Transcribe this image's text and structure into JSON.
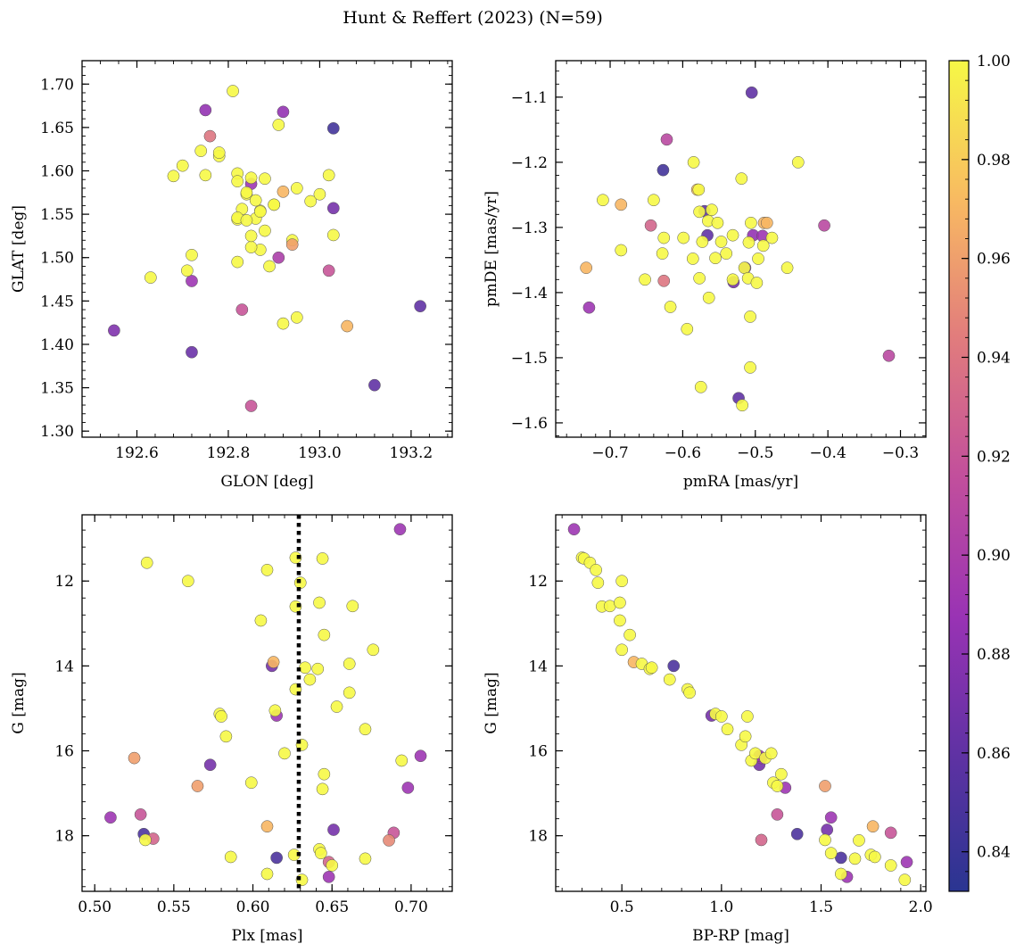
{
  "title": "Hunt & Reffert (2023) (N=59)",
  "colors": {
    "axis": "#000000",
    "marker_edge": "#555555",
    "vline": "#000000"
  },
  "colorbar": {
    "colormap": "plasma",
    "range": [
      0.832,
      1.0
    ],
    "ticks": [
      0.84,
      0.86,
      0.88,
      0.9,
      0.92,
      0.94,
      0.96,
      0.98,
      1.0
    ],
    "tick_labels": [
      "0.84",
      "0.86",
      "0.88",
      "0.90",
      "0.92",
      "0.94",
      "0.96",
      "0.98",
      "1.00"
    ]
  },
  "chart_data": [
    {
      "type": "scatter",
      "xlabel": "GLON [deg]",
      "ylabel": "GLAT [deg]",
      "xlim": [
        192.48,
        193.29
      ],
      "ylim": [
        1.293,
        1.727
      ],
      "xticks": [
        192.6,
        192.8,
        193.0,
        193.2
      ],
      "xtick_labels": [
        "192.6",
        "192.8",
        "193.0",
        "193.2"
      ],
      "yticks": [
        1.3,
        1.35,
        1.4,
        1.45,
        1.5,
        1.55,
        1.6,
        1.65,
        1.7
      ],
      "ytick_labels": [
        "1.30",
        "1.35",
        "1.40",
        "1.45",
        "1.50",
        "1.55",
        "1.60",
        "1.65",
        "1.70"
      ],
      "x": [
        192.55,
        192.72,
        192.72,
        192.75,
        192.76,
        192.83,
        192.85,
        192.85,
        192.91,
        192.92,
        193.03,
        193.03,
        193.02,
        193.12,
        193.22,
        192.81,
        192.74,
        192.75,
        192.78,
        192.78,
        192.7,
        192.68,
        192.82,
        192.82,
        192.83,
        192.84,
        192.84,
        192.85,
        192.86,
        192.87,
        192.87,
        192.88,
        192.89,
        192.9,
        192.91,
        192.92,
        192.94,
        192.95,
        192.98,
        193.0,
        193.02,
        193.03,
        192.63,
        192.71,
        192.72,
        192.82,
        192.82,
        192.84,
        192.85,
        192.85,
        192.87,
        192.88,
        192.9,
        192.94,
        192.95,
        193.06,
        192.82,
        192.86,
        192.92
      ],
      "y": [
        1.416,
        1.391,
        1.473,
        1.67,
        1.64,
        1.44,
        1.329,
        1.585,
        1.5,
        1.668,
        1.649,
        1.557,
        1.485,
        1.353,
        1.444,
        1.692,
        1.623,
        1.595,
        1.617,
        1.621,
        1.606,
        1.594,
        1.597,
        1.588,
        1.556,
        1.573,
        1.575,
        1.592,
        1.545,
        1.554,
        1.509,
        1.591,
        1.49,
        1.561,
        1.653,
        1.576,
        1.52,
        1.58,
        1.565,
        1.573,
        1.595,
        1.526,
        1.477,
        1.485,
        1.503,
        1.544,
        1.546,
        1.543,
        1.512,
        1.525,
        1.553,
        1.531,
        1.561,
        1.515,
        1.431,
        1.421,
        1.495,
        1.566,
        1.424
      ],
      "c": [
        0.875,
        0.865,
        0.89,
        0.885,
        0.94,
        0.92,
        0.92,
        0.89,
        0.9,
        0.885,
        0.845,
        0.87,
        0.92,
        0.86,
        0.86,
        1,
        1,
        1,
        1,
        1,
        1,
        1,
        1,
        1,
        1,
        1,
        1,
        1,
        1,
        1,
        1,
        1,
        1,
        1,
        1,
        0.97,
        1,
        1,
        1,
        1,
        1,
        1,
        1,
        1,
        1,
        1,
        1,
        1,
        1,
        1,
        1,
        1,
        1,
        0.96,
        1,
        0.97,
        1,
        1,
        1
      ]
    },
    {
      "type": "scatter",
      "xlabel": "pmRA [mas/yr]",
      "ylabel": "pmDE [mas/yr]",
      "xlim": [
        -0.775,
        -0.265
      ],
      "ylim": [
        -1.622,
        -1.044
      ],
      "xticks": [
        -0.7,
        -0.6,
        -0.5,
        -0.4,
        -0.3
      ],
      "xtick_labels": [
        "−0.7",
        "−0.6",
        "−0.5",
        "−0.4",
        "−0.3"
      ],
      "yticks": [
        -1.6,
        -1.5,
        -1.4,
        -1.3,
        -1.2,
        -1.1
      ],
      "ytick_labels": [
        "−1.6",
        "−1.5",
        "−1.4",
        "−1.3",
        "−1.2",
        "−1.1"
      ],
      "x": [
        -0.505,
        -0.622,
        -0.627,
        -0.57,
        -0.566,
        -0.53,
        -0.514,
        -0.503,
        -0.49,
        -0.523,
        -0.729,
        -0.405,
        -0.316,
        -0.644,
        -0.626,
        -0.733,
        -0.71,
        -0.685,
        -0.64,
        -0.626,
        -0.585,
        -0.58,
        -0.565,
        -0.56,
        -0.552,
        -0.547,
        -0.531,
        -0.519,
        -0.509,
        -0.506,
        -0.488,
        -0.477,
        -0.441,
        -0.577,
        -0.54,
        -0.573,
        -0.555,
        -0.586,
        -0.628,
        -0.599,
        -0.685,
        -0.652,
        -0.617,
        -0.577,
        -0.594,
        -0.564,
        -0.531,
        -0.515,
        -0.51,
        -0.498,
        -0.496,
        -0.489,
        -0.456,
        -0.507,
        -0.507,
        -0.518,
        -0.484,
        -0.578,
        -0.575
      ],
      "y": [
        -1.093,
        -1.165,
        -1.212,
        -1.275,
        -1.312,
        -1.384,
        -1.362,
        -1.312,
        -1.313,
        -1.562,
        -1.423,
        -1.297,
        -1.497,
        -1.297,
        -1.382,
        -1.362,
        -1.258,
        -1.265,
        -1.258,
        -1.316,
        -1.2,
        -1.242,
        -1.29,
        -1.273,
        -1.293,
        -1.322,
        -1.312,
        -1.225,
        -1.323,
        -1.293,
        -1.293,
        -1.316,
        -1.2,
        -1.276,
        -1.34,
        -1.322,
        -1.347,
        -1.348,
        -1.34,
        -1.316,
        -1.335,
        -1.38,
        -1.422,
        -1.378,
        -1.456,
        -1.408,
        -1.38,
        -1.362,
        -1.378,
        -1.385,
        -1.348,
        -1.328,
        -1.362,
        -1.437,
        -1.515,
        -1.573,
        -1.293,
        -1.242,
        -1.545
      ],
      "c": [
        0.86,
        0.91,
        0.845,
        0.86,
        0.86,
        0.87,
        0.875,
        0.885,
        0.89,
        0.86,
        0.89,
        0.91,
        0.91,
        0.93,
        0.94,
        0.97,
        1,
        0.97,
        1,
        1,
        1,
        0.975,
        1,
        1,
        1,
        1,
        1,
        1,
        1,
        1,
        0.97,
        1,
        1,
        1,
        1,
        1,
        1,
        1,
        1,
        1,
        1,
        1,
        1,
        1,
        1,
        1,
        1,
        1,
        1,
        1,
        1,
        1,
        1,
        1,
        1,
        1,
        0.97,
        1,
        1
      ]
    },
    {
      "type": "scatter",
      "xlabel": "Plx [mas]",
      "ylabel": "G [mag]",
      "xlim": [
        0.492,
        0.726
      ],
      "ylim": [
        19.31,
        10.44
      ],
      "invert_y": true,
      "vline": 0.629,
      "xticks": [
        0.5,
        0.55,
        0.6,
        0.65,
        0.7
      ],
      "xtick_labels": [
        "0.50",
        "0.55",
        "0.60",
        "0.65",
        "0.70"
      ],
      "yticks": [
        12,
        14,
        16,
        18
      ],
      "ytick_labels": [
        "12",
        "14",
        "16",
        "18"
      ],
      "x": [
        0.693,
        0.51,
        0.529,
        0.531,
        0.537,
        0.573,
        0.612,
        0.615,
        0.615,
        0.651,
        0.648,
        0.689,
        0.706,
        0.698,
        0.533,
        0.559,
        0.627,
        0.63,
        0.644,
        0.609,
        0.642,
        0.663,
        0.627,
        0.605,
        0.645,
        0.676,
        0.661,
        0.613,
        0.627,
        0.633,
        0.636,
        0.641,
        0.579,
        0.58,
        0.614,
        0.631,
        0.661,
        0.653,
        0.671,
        0.583,
        0.62,
        0.644,
        0.525,
        0.565,
        0.599,
        0.645,
        0.694,
        0.609,
        0.626,
        0.686,
        0.532,
        0.586,
        0.642,
        0.648,
        0.65,
        0.671,
        0.609,
        0.631,
        0.643
      ],
      "y": [
        10.78,
        17.57,
        17.5,
        17.96,
        18.07,
        16.33,
        14.0,
        15.17,
        18.52,
        17.86,
        18.97,
        17.93,
        16.12,
        16.87,
        11.57,
        12.0,
        11.45,
        12.04,
        11.47,
        11.74,
        12.51,
        12.59,
        12.6,
        12.93,
        13.27,
        13.62,
        13.95,
        13.91,
        14.55,
        14.04,
        14.32,
        14.07,
        15.13,
        15.19,
        15.05,
        15.86,
        14.63,
        14.96,
        15.49,
        15.66,
        16.06,
        16.9,
        16.17,
        16.83,
        16.75,
        16.55,
        16.23,
        17.78,
        18.45,
        18.11,
        18.1,
        18.5,
        18.32,
        18.62,
        18.7,
        18.54,
        18.9,
        19.04,
        18.41
      ],
      "c": [
        0.89,
        0.89,
        0.92,
        0.85,
        0.93,
        0.87,
        0.87,
        0.89,
        0.85,
        0.87,
        0.89,
        0.92,
        0.89,
        0.89,
        1,
        1,
        1,
        1,
        1,
        1,
        1,
        1,
        1,
        1,
        1,
        1,
        1,
        0.97,
        1,
        1,
        1,
        1,
        1,
        1,
        1,
        1,
        1,
        1,
        1,
        1,
        1,
        1,
        0.96,
        0.96,
        1,
        1,
        1,
        0.97,
        1,
        0.95,
        1,
        1,
        1,
        0.93,
        1,
        1,
        1,
        1,
        1
      ]
    },
    {
      "type": "scatter",
      "xlabel": "BP-RP [mag]",
      "ylabel": "G [mag]",
      "xlim": [
        0.168,
        2.026
      ],
      "ylim": [
        19.31,
        10.44
      ],
      "invert_y": true,
      "xticks": [
        0.5,
        1.0,
        1.5,
        2.0
      ],
      "xtick_labels": [
        "0.5",
        "1.0",
        "1.5",
        "2.0"
      ],
      "yticks": [
        12,
        14,
        16,
        18
      ],
      "ytick_labels": [
        "12",
        "14",
        "16",
        "18"
      ],
      "x": [
        0.26,
        0.76,
        0.95,
        1.19,
        1.2,
        1.38,
        1.53,
        1.6,
        1.63,
        1.85,
        1.93,
        1.55,
        1.28,
        1.32,
        1.2,
        1.19,
        0.3,
        0.31,
        0.34,
        0.37,
        0.38,
        0.4,
        0.44,
        0.49,
        0.5,
        0.49,
        0.54,
        0.5,
        0.56,
        0.6,
        0.64,
        0.65,
        0.74,
        0.83,
        0.84,
        0.97,
        1.0,
        1.03,
        1.1,
        1.12,
        1.13,
        1.15,
        1.17,
        1.22,
        1.25,
        1.26,
        1.28,
        1.3,
        1.52,
        1.55,
        1.6,
        1.67,
        1.69,
        1.76,
        1.75,
        1.85,
        1.92,
        1.52,
        1.77
      ],
      "y": [
        10.78,
        14.0,
        15.17,
        16.33,
        16.17,
        17.96,
        17.86,
        18.52,
        18.97,
        17.93,
        18.62,
        17.57,
        17.5,
        16.87,
        18.1,
        16.12,
        11.45,
        11.47,
        11.57,
        11.74,
        12.04,
        12.6,
        12.59,
        12.93,
        12.0,
        12.51,
        13.27,
        13.62,
        13.91,
        13.95,
        14.07,
        14.04,
        14.32,
        14.55,
        14.63,
        15.13,
        15.19,
        15.49,
        15.86,
        15.66,
        15.19,
        16.23,
        16.06,
        16.17,
        16.06,
        16.75,
        16.83,
        16.55,
        18.1,
        18.41,
        18.9,
        18.54,
        18.11,
        17.78,
        18.45,
        18.7,
        19.04,
        16.83,
        18.5
      ],
      "c": [
        0.89,
        0.85,
        0.87,
        0.87,
        0.89,
        0.85,
        0.87,
        0.85,
        0.89,
        0.92,
        0.89,
        0.89,
        0.92,
        0.89,
        0.93,
        0.89,
        1,
        1,
        1,
        1,
        1,
        1,
        1,
        1,
        1,
        1,
        1,
        1,
        0.97,
        1,
        1,
        1,
        1,
        1,
        1,
        1,
        1,
        1,
        1,
        1,
        1,
        1,
        1,
        1,
        1,
        1,
        1,
        1,
        1,
        1,
        1,
        1,
        1,
        0.97,
        1,
        1,
        1,
        0.96,
        1
      ]
    }
  ]
}
